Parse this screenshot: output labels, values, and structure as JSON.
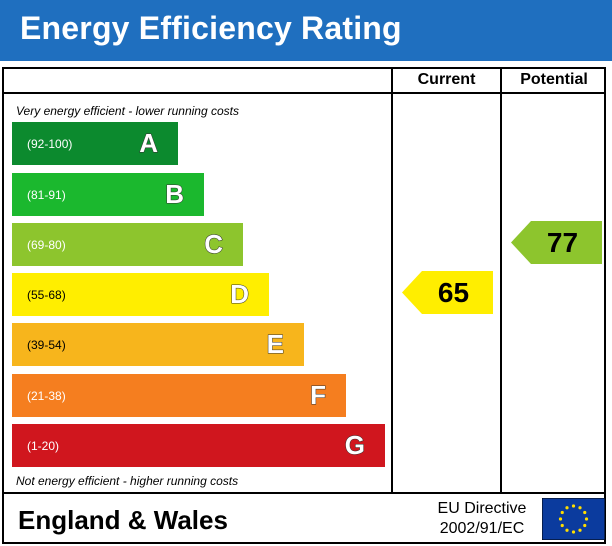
{
  "header": {
    "title": "Energy Efficiency Rating"
  },
  "columns": {
    "current": "Current",
    "potential": "Potential"
  },
  "notes": {
    "top": "Very energy efficient - lower running costs",
    "bottom": "Not energy efficient - higher running costs"
  },
  "chart_data": {
    "type": "bar",
    "title": "Energy Efficiency Rating",
    "bands": [
      {
        "letter": "A",
        "range": "(92-100)",
        "color": "#0c8a2e"
      },
      {
        "letter": "B",
        "range": "(81-91)",
        "color": "#1bb82e"
      },
      {
        "letter": "C",
        "range": "(69-80)",
        "color": "#8dc52d"
      },
      {
        "letter": "D",
        "range": "(55-68)",
        "color": "#ffee00"
      },
      {
        "letter": "E",
        "range": "(39-54)",
        "color": "#f7b51c"
      },
      {
        "letter": "F",
        "range": "(21-38)",
        "color": "#f57e1f"
      },
      {
        "letter": "G",
        "range": "(1-20)",
        "color": "#d0161e"
      }
    ],
    "current": {
      "value": 65,
      "band": "D",
      "color": "#ffee00"
    },
    "potential": {
      "value": 77,
      "band": "C",
      "color": "#8dc52d"
    }
  },
  "footer": {
    "region": "England & Wales",
    "directive_line1": "EU Directive",
    "directive_line2": "2002/91/EC"
  },
  "colors": {
    "header_bg": "#1f6fbf",
    "eu_flag_bg": "#0b3b9e",
    "eu_star": "#ffdd00"
  }
}
